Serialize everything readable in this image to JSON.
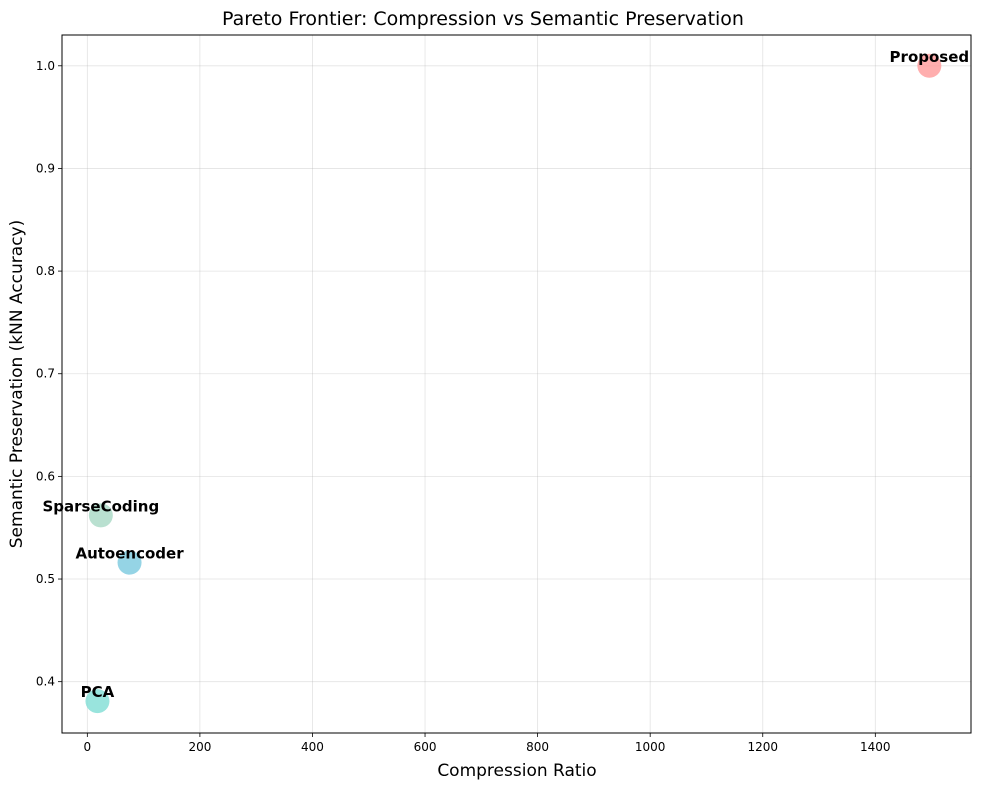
{
  "chart_data": {
    "type": "scatter",
    "title": "Pareto Frontier: Compression vs Semantic Preservation",
    "xlabel": "Compression Ratio",
    "ylabel": "Semantic Preservation (kNN Accuracy)",
    "xlim": [
      -45,
      1570
    ],
    "ylim": [
      0.35,
      1.03
    ],
    "xticks": [
      0,
      200,
      400,
      600,
      800,
      1000,
      1200,
      1400
    ],
    "yticks": [
      0.4,
      0.5,
      0.6,
      0.7,
      0.8,
      0.9,
      1.0
    ],
    "xtick_labels": [
      "0",
      "200",
      "400",
      "600",
      "800",
      "1000",
      "1200",
      "1400"
    ],
    "ytick_labels": [
      "0.4",
      "0.5",
      "0.6",
      "0.7",
      "0.8",
      "0.9",
      "1.0"
    ],
    "grid": true,
    "points": [
      {
        "label": "PCA",
        "x": 18,
        "y": 0.381,
        "color": "#7fddd4"
      },
      {
        "label": "SparseCoding",
        "x": 24,
        "y": 0.562,
        "color": "#a8d8c4"
      },
      {
        "label": "Autoencoder",
        "x": 75,
        "y": 0.516,
        "color": "#7bc9df"
      },
      {
        "label": "Proposed",
        "x": 1496,
        "y": 1.0,
        "color": "#ff9a9a"
      }
    ]
  }
}
